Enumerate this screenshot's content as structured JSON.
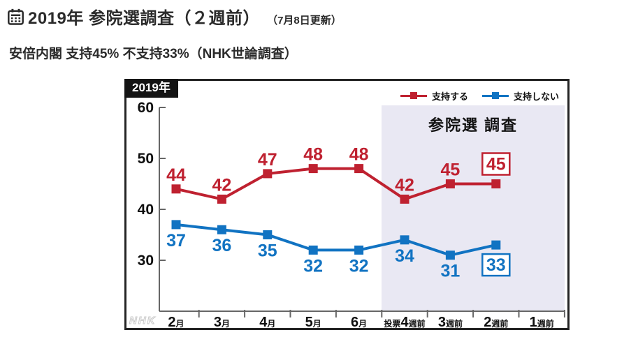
{
  "page": {
    "title": "2019年 参院選調査（２週前）",
    "title_note": "（7月8日更新）",
    "title_icon": "calendar-icon",
    "subtitle": "安倍内閣 支持45% 不支持33%（NHK世論調査）"
  },
  "chart": {
    "year_label": "2019年",
    "highlight_label": "参院選 調査",
    "watermark": "NHK"
  },
  "chart_data": {
    "type": "line",
    "title": "2019年",
    "categories": [
      {
        "label": "2月",
        "pre": "",
        "big": "2",
        "suf": "月"
      },
      {
        "label": "3月",
        "pre": "",
        "big": "3",
        "suf": "月"
      },
      {
        "label": "4月",
        "pre": "",
        "big": "4",
        "suf": "月"
      },
      {
        "label": "5月",
        "pre": "",
        "big": "5",
        "suf": "月"
      },
      {
        "label": "6月",
        "pre": "",
        "big": "6",
        "suf": "月"
      },
      {
        "label": "投票4週前",
        "pre": "投票",
        "big": "4",
        "suf": "週前"
      },
      {
        "label": "3週前",
        "pre": "",
        "big": "3",
        "suf": "週前"
      },
      {
        "label": "2週前",
        "pre": "",
        "big": "2",
        "suf": "週前"
      },
      {
        "label": "1週前",
        "pre": "",
        "big": "1",
        "suf": "週前"
      }
    ],
    "series": [
      {
        "name": "支持する",
        "color": "#bf2130",
        "values": [
          44,
          42,
          47,
          48,
          48,
          42,
          45,
          45
        ],
        "label_side": "above",
        "last_boxed": true
      },
      {
        "name": "支持しない",
        "color": "#1173c2",
        "values": [
          37,
          36,
          35,
          32,
          32,
          34,
          31,
          33
        ],
        "label_side": "below",
        "last_boxed": true
      }
    ],
    "yticks": [
      60,
      50,
      40,
      30
    ],
    "ylim": [
      20,
      60
    ],
    "grid": false,
    "legend_position": "top-right",
    "highlight_region": {
      "start_category": "投票4週前",
      "end": "axis-end",
      "label": "参院選 調査",
      "fill": "#e9e8f3"
    }
  }
}
